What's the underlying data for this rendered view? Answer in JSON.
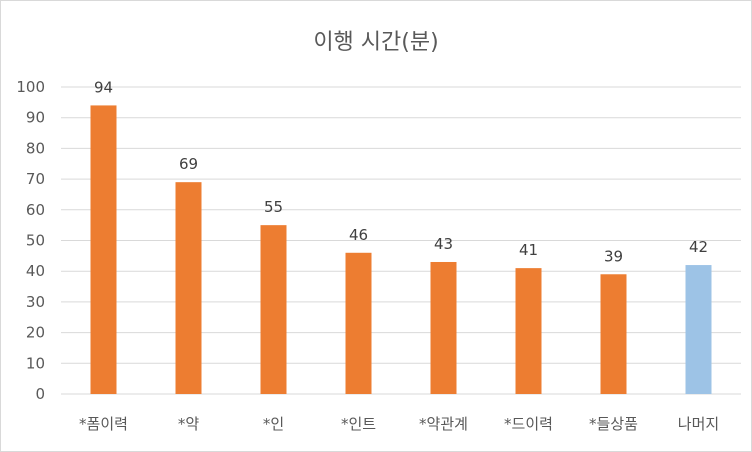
{
  "chart_data": {
    "type": "bar",
    "title": "이행 시간(분)",
    "xlabel": "",
    "ylabel": "",
    "ylim": [
      0,
      100
    ],
    "yticks": [
      0,
      10,
      20,
      30,
      40,
      50,
      60,
      70,
      80,
      90,
      100
    ],
    "grid": true,
    "legend": "none",
    "categories": [
      "*폼이력",
      "*약",
      "*인",
      "*인트",
      "*약관계",
      "*드이력",
      "*들상품",
      "나머지"
    ],
    "values": [
      94,
      69,
      55,
      46,
      43,
      41,
      39,
      42
    ],
    "data_labels": [
      "94",
      "69",
      "55",
      "46",
      "43",
      "41",
      "39",
      "42"
    ],
    "colors": {
      "default_bar": "#ED7D31",
      "highlight_bar": "#9DC3E6",
      "gridline": "#D9D9D9",
      "axis_text": "#595959",
      "label_text": "#404040"
    },
    "bar_colors": [
      "#ED7D31",
      "#ED7D31",
      "#ED7D31",
      "#ED7D31",
      "#ED7D31",
      "#ED7D31",
      "#ED7D31",
      "#9DC3E6"
    ]
  }
}
